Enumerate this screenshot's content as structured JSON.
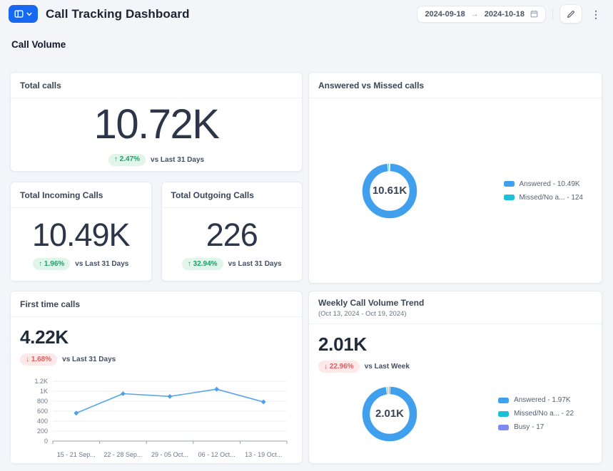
{
  "colors": {
    "accent_blue": "#1668f2",
    "answered": "#41a0ee",
    "missed": "#1fc0d7",
    "busy": "#7e8bf0",
    "line": "#57a6ea",
    "positive_text": "#1e9e6a",
    "positive_bg": "#e1f5ea",
    "negative_text": "#e05d5d",
    "negative_bg": "#fce9e9"
  },
  "icons": {
    "dashboard_switcher": "layout-grid-icon",
    "chevron_down": "chevron-down-icon",
    "arrow_right": "→",
    "calendar": "calendar-icon",
    "pencil": "pencil-icon",
    "overflow_menu": "⋮"
  },
  "header": {
    "title": "Call Tracking Dashboard",
    "date_range": {
      "start": "2024-09-18",
      "end": "2024-10-18"
    }
  },
  "section": {
    "title": "Call Volume"
  },
  "cards": {
    "total_calls": {
      "title": "Total calls",
      "value": "10.72K",
      "delta": "↑ 2.47%",
      "delta_direction": "up",
      "compare": "vs Last 31 Days"
    },
    "answered_vs_missed": {
      "title": "Answered vs Missed calls",
      "center_label": "10.61K",
      "legend": [
        {
          "label": "Answered - 10.49K",
          "color": "#41a0ee"
        },
        {
          "label": "Missed/No a... - 124",
          "color": "#1fc0d7"
        }
      ]
    },
    "total_incoming": {
      "title": "Total Incoming Calls",
      "value": "10.49K",
      "delta": "↑ 1.96%",
      "delta_direction": "up",
      "compare": "vs Last 31 Days"
    },
    "total_outgoing": {
      "title": "Total Outgoing Calls",
      "value": "226",
      "delta": "↑ 32.94%",
      "delta_direction": "up",
      "compare": "vs Last 31 Days"
    },
    "first_time_calls": {
      "title": "First time calls",
      "value": "4.22K",
      "delta": "↓ 1.68%",
      "delta_direction": "down",
      "compare": "vs Last 31 Days"
    },
    "weekly_trend": {
      "title": "Weekly Call Volume Trend",
      "subtitle": "(Oct 13, 2024 - Oct 19, 2024)",
      "value": "2.01K",
      "delta": "↓ 22.96%",
      "delta_direction": "down",
      "compare": "vs Last Week",
      "center_label": "2.01K",
      "legend": [
        {
          "label": "Answered - 1.97K",
          "color": "#41a0ee"
        },
        {
          "label": "Missed/No a... - 22",
          "color": "#1fc0d7"
        },
        {
          "label": "Busy - 17",
          "color": "#7e8bf0"
        }
      ]
    }
  },
  "chart_data": [
    {
      "type": "line",
      "card": "first_time_calls",
      "title": "First time calls by week",
      "x": [
        "15 - 21 Sep...",
        "22 - 28 Sep...",
        "29 - 05 Oct...",
        "06 - 12 Oct...",
        "13 - 19 Oct..."
      ],
      "values": [
        560,
        950,
        895,
        1040,
        785
      ],
      "ylim": [
        0,
        1200
      ],
      "yticks": [
        "0",
        "200",
        "400",
        "600",
        "800",
        "1K",
        "1.2K"
      ],
      "grid": true,
      "legend_position": "none",
      "line_color": "#57a6ea",
      "marker_color": "#4d9fe8"
    },
    {
      "type": "pie",
      "card": "answered_vs_missed",
      "title": "Answered vs Missed calls",
      "center_label": "10.61K",
      "legend_position": "right",
      "segments": [
        {
          "name": "Answered",
          "value": 10490,
          "color": "#41a0ee"
        },
        {
          "name": "Missed/No answer",
          "value": 124,
          "color": "#1fc0d7"
        }
      ]
    },
    {
      "type": "pie",
      "card": "weekly_trend",
      "title": "Weekly Call Volume Trend",
      "center_label": "2.01K",
      "legend_position": "right",
      "segments": [
        {
          "name": "Answered",
          "value": 1970,
          "color": "#41a0ee"
        },
        {
          "name": "Missed/No answer",
          "value": 22,
          "color": "#1fc0d7"
        },
        {
          "name": "Busy",
          "value": 17,
          "color": "#7e8bf0"
        }
      ]
    }
  ]
}
